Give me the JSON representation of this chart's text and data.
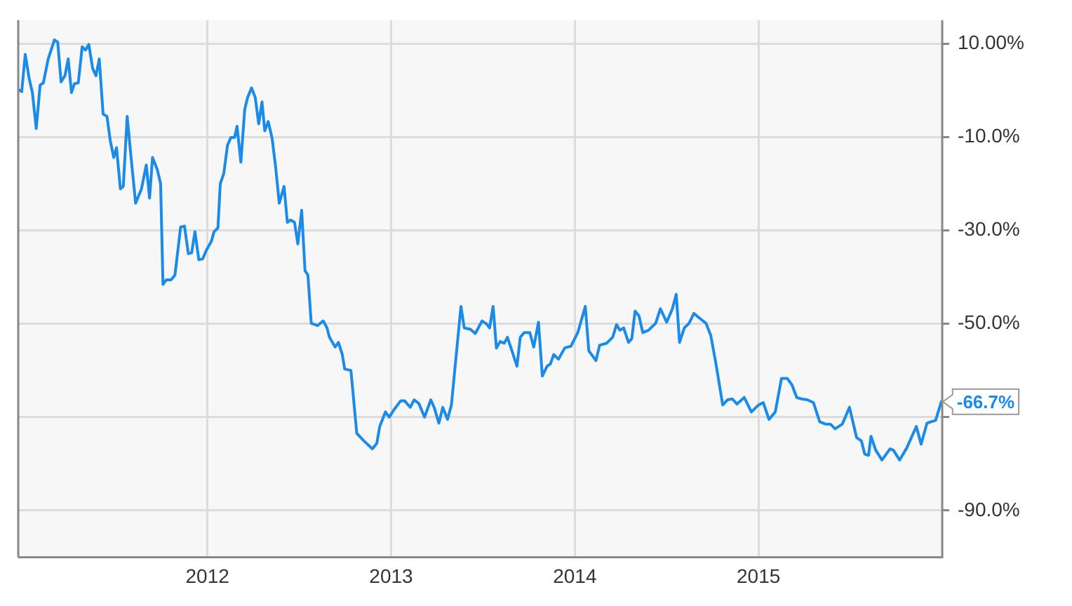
{
  "chart_data": {
    "type": "line",
    "x": [
      2010.977,
      2010.989,
      2011.008,
      2011.029,
      2011.047,
      2011.068,
      2011.089,
      2011.107,
      2011.133,
      2011.167,
      2011.185,
      2011.203,
      2011.224,
      2011.242,
      2011.26,
      2011.276,
      2011.297,
      2011.318,
      2011.336,
      2011.354,
      2011.375,
      2011.393,
      2011.411,
      2011.432,
      2011.453,
      2011.471,
      2011.49,
      2011.505,
      2011.526,
      2011.542,
      2011.563,
      2011.583,
      2011.609,
      2011.641,
      2011.667,
      2011.685,
      2011.701,
      2011.727,
      2011.745,
      2011.758,
      2011.776,
      2011.802,
      2011.823,
      2011.854,
      2011.875,
      2011.896,
      2011.914,
      2011.932,
      2011.953,
      2011.974,
      2011.995,
      2012.021,
      2012.036,
      2012.057,
      2012.07,
      2012.089,
      2012.109,
      2012.128,
      2012.148,
      2012.161,
      2012.182,
      2012.203,
      2012.219,
      2012.24,
      2012.26,
      2012.279,
      2012.297,
      2012.312,
      2012.331,
      2012.352,
      2012.37,
      2012.391,
      2012.417,
      2012.435,
      2012.453,
      2012.474,
      2012.492,
      2012.513,
      2012.531,
      2012.547,
      2012.565,
      2012.599,
      2012.63,
      2012.651,
      2012.664,
      2012.695,
      2012.713,
      2012.734,
      2012.747,
      2012.781,
      2012.813,
      2012.852,
      2012.898,
      2012.922,
      2012.938,
      2012.969,
      2012.99,
      2013.016,
      2013.052,
      2013.073,
      2013.104,
      2013.125,
      2013.151,
      2013.182,
      2013.216,
      2013.234,
      2013.26,
      2013.281,
      2013.307,
      2013.328,
      2013.38,
      2013.398,
      2013.432,
      2013.458,
      2013.495,
      2013.521,
      2013.536,
      2013.555,
      2013.573,
      2013.594,
      2013.615,
      2013.633,
      2013.651,
      2013.685,
      2013.703,
      2013.724,
      2013.755,
      2013.776,
      2013.802,
      2013.823,
      2013.849,
      2013.867,
      2013.885,
      2013.911,
      2013.945,
      2013.979,
      2014.016,
      2014.057,
      2014.076,
      2014.115,
      2014.135,
      2014.172,
      2014.206,
      2014.227,
      2014.245,
      2014.266,
      2014.292,
      2014.31,
      2014.328,
      2014.349,
      2014.37,
      2014.401,
      2014.44,
      2014.466,
      2014.5,
      2014.531,
      2014.552,
      2014.57,
      2014.596,
      2014.622,
      2014.648,
      2014.688,
      2014.714,
      2014.74,
      2014.766,
      2014.805,
      2014.831,
      2014.857,
      2014.883,
      2014.922,
      2014.961,
      2015.0,
      2015.026,
      2015.057,
      2015.091,
      2015.125,
      2015.156,
      2015.182,
      2015.208,
      2015.234,
      2015.266,
      2015.299,
      2015.333,
      2015.365,
      2015.391,
      2015.417,
      2015.456,
      2015.495,
      2015.534,
      2015.56,
      2015.578,
      2015.599,
      2015.612,
      2015.638,
      2015.672,
      2015.716,
      2015.734,
      2015.768,
      2015.807,
      2015.859,
      2015.885,
      2015.917,
      2015.938,
      2015.964,
      2015.995
    ],
    "series": [
      {
        "color": "#1a8be8",
        "values": [
          0.0,
          -0.3,
          7.7,
          2.6,
          -0.5,
          -8.2,
          1.1,
          1.6,
          6.7,
          10.8,
          10.3,
          1.8,
          3.1,
          6.7,
          -0.5,
          1.4,
          1.6,
          9.3,
          8.6,
          9.8,
          4.7,
          3.1,
          6.7,
          -5.1,
          -5.6,
          -10.8,
          -14.4,
          -12.3,
          -21.1,
          -20.6,
          -5.6,
          -13.9,
          -24.2,
          -21.1,
          -16.0,
          -23.1,
          -14.4,
          -17.0,
          -20.0,
          -41.6,
          -40.6,
          -40.6,
          -39.6,
          -29.3,
          -29.1,
          -35.0,
          -34.8,
          -30.3,
          -36.3,
          -36.1,
          -34.2,
          -32.4,
          -30.3,
          -29.5,
          -20.0,
          -17.8,
          -11.8,
          -10.1,
          -10.1,
          -7.7,
          -15.4,
          -4.1,
          -1.5,
          0.5,
          -1.5,
          -7.2,
          -2.5,
          -8.7,
          -6.7,
          -10.3,
          -16.0,
          -24.2,
          -20.6,
          -28.3,
          -27.8,
          -28.3,
          -32.9,
          -25.7,
          -38.6,
          -39.6,
          -49.9,
          -50.4,
          -49.4,
          -50.9,
          -52.9,
          -55.0,
          -54.0,
          -56.6,
          -59.7,
          -60.0,
          -73.5,
          -75.1,
          -76.8,
          -75.6,
          -72.0,
          -68.9,
          -70.0,
          -68.4,
          -66.5,
          -66.5,
          -67.9,
          -66.3,
          -67.1,
          -70.0,
          -66.3,
          -67.9,
          -71.3,
          -67.9,
          -70.5,
          -67.4,
          -46.3,
          -50.9,
          -51.2,
          -52.1,
          -49.4,
          -50.1,
          -50.9,
          -46.3,
          -55.2,
          -53.8,
          -54.2,
          -52.9,
          -55.0,
          -59.1,
          -52.9,
          -51.9,
          -51.9,
          -55.0,
          -49.7,
          -61.2,
          -59.1,
          -58.6,
          -56.6,
          -57.6,
          -55.2,
          -54.8,
          -51.9,
          -46.3,
          -55.8,
          -57.9,
          -54.6,
          -54.2,
          -52.9,
          -50.2,
          -51.4,
          -50.9,
          -54.0,
          -53.2,
          -47.3,
          -48.3,
          -51.9,
          -51.4,
          -49.9,
          -46.8,
          -49.7,
          -46.8,
          -43.7,
          -54.0,
          -50.9,
          -49.9,
          -47.8,
          -49.1,
          -49.9,
          -52.5,
          -58.1,
          -67.4,
          -66.3,
          -66.1,
          -67.2,
          -65.8,
          -68.9,
          -67.4,
          -66.9,
          -70.5,
          -68.9,
          -61.7,
          -61.7,
          -63.1,
          -65.8,
          -66.1,
          -66.3,
          -66.9,
          -71.0,
          -71.5,
          -71.5,
          -72.5,
          -71.5,
          -67.9,
          -74.4,
          -75.1,
          -77.9,
          -78.2,
          -74.1,
          -77.1,
          -79.2,
          -76.8,
          -77.1,
          -79.2,
          -76.6,
          -72.0,
          -75.8,
          -71.3,
          -71.0,
          -70.7,
          -66.7
        ]
      }
    ],
    "xlim": [
      2010.97,
      2016.0
    ],
    "xticks": [
      2012,
      2013,
      2014,
      2015
    ],
    "ylim": [
      -100,
      15
    ],
    "yticks": [
      {
        "value": 10,
        "label": "10.00%"
      },
      {
        "value": -10,
        "label": "-10.0%"
      },
      {
        "value": -30,
        "label": "-30.0%"
      },
      {
        "value": -50,
        "label": "-50.0%"
      },
      {
        "value": -70,
        "label": null
      },
      {
        "value": -90,
        "label": "-90.0%"
      }
    ],
    "annotations": [
      {
        "text": "-66.7%",
        "x": 2015.995,
        "y": -66.7
      }
    ],
    "grid": true,
    "legend": false,
    "marker": "none",
    "line_style": "solid"
  }
}
